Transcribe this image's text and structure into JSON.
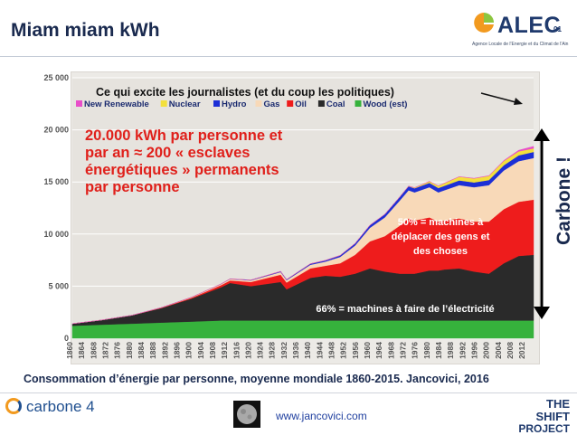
{
  "slide": {
    "title": "Miam miam kWh",
    "caption": "Consommation d’énergie par personne, moyenne mondiale 1860-2015. Jancovici, 2016",
    "url": "www.jancovici.com"
  },
  "logos": {
    "alec": "ALEC",
    "alec_number": "01",
    "alec_subtitle": "Agence Locale de l'Énergie et du Climat de l'Ain",
    "carbone4": "carbone 4",
    "shift_line1": "THE SHIFT",
    "shift_line2": "PROJECT"
  },
  "colors": {
    "title": "#1a2a4f",
    "red_annotation": "#e0201b",
    "new_renewable": "#e84ec9",
    "nuclear": "#f3e03c",
    "hydro": "#1d2fd6",
    "gas": "#f8d9b8",
    "oil": "#ee1c1c",
    "coal": "#2a2a2a",
    "wood": "#36b23c"
  },
  "annotations": {
    "journalists": "Ce qui excite les journalistes (et du coup les politiques)",
    "per_person_lines": [
      "20.000 kWh par personne et",
      "par an ≈ 200 « esclaves",
      "énergétiques » permanents",
      "par personne"
    ],
    "machines_move_lines": [
      "50% = machines à",
      "déplacer des gens et",
      "des choses"
    ],
    "machines_electricity": "66% = machines à faire de l’électricité",
    "carbone": "Carbone !"
  },
  "chart_data": {
    "type": "area",
    "stacked": true,
    "title": "",
    "xlabel": "",
    "ylabel": "",
    "units": "kWh per person per year",
    "ylim": [
      0,
      25000
    ],
    "y_ticks": [
      0,
      5000,
      10000,
      15000,
      20000,
      25000
    ],
    "y_tick_labels": [
      "0",
      "5 000",
      "10 000",
      "15 000",
      "20 000",
      "25 000"
    ],
    "x_tick_labels": [
      "1860",
      "1864",
      "1868",
      "1872",
      "1876",
      "1880",
      "1884",
      "1888",
      "1892",
      "1896",
      "1900",
      "1904",
      "1908",
      "1912",
      "1916",
      "1920",
      "1924",
      "1928",
      "1932",
      "1936",
      "1940",
      "1944",
      "1948",
      "1952",
      "1956",
      "1960",
      "1964",
      "1968",
      "1972",
      "1976",
      "1980",
      "1984",
      "1988",
      "1992",
      "1996",
      "2000",
      "2004",
      "2008",
      "2012"
    ],
    "legend_position": "top-left",
    "x": [
      1860,
      1870,
      1880,
      1890,
      1900,
      1910,
      1913,
      1920,
      1930,
      1932,
      1940,
      1945,
      1950,
      1955,
      1960,
      1965,
      1970,
      1973,
      1975,
      1980,
      1983,
      1985,
      1990,
      1995,
      2000,
      2005,
      2010,
      2015
    ],
    "series": [
      {
        "name": "Wood (est)",
        "color": "#36b23c",
        "values": [
          1200,
          1300,
          1400,
          1500,
          1600,
          1700,
          1700,
          1700,
          1700,
          1700,
          1700,
          1700,
          1700,
          1700,
          1700,
          1700,
          1700,
          1700,
          1700,
          1700,
          1700,
          1700,
          1700,
          1700,
          1700,
          1700,
          1700,
          1700
        ]
      },
      {
        "name": "Coal",
        "color": "#2a2a2a",
        "values": [
          200,
          450,
          800,
          1400,
          2200,
          3200,
          3600,
          3300,
          3700,
          3000,
          4100,
          4300,
          4200,
          4500,
          5000,
          4700,
          4500,
          4500,
          4500,
          4800,
          4800,
          4900,
          5000,
          4700,
          4500,
          5500,
          6200,
          6300
        ]
      },
      {
        "name": "Oil",
        "color": "#ee1c1c",
        "values": [
          0,
          0,
          5,
          30,
          80,
          200,
          250,
          400,
          700,
          650,
          900,
          950,
          1300,
          1800,
          2600,
          3400,
          4600,
          5300,
          5100,
          5100,
          4700,
          4700,
          4800,
          4800,
          5000,
          5200,
          5200,
          5300
        ]
      },
      {
        "name": "Gas",
        "color": "#f8d9b8",
        "values": [
          0,
          0,
          0,
          20,
          50,
          100,
          130,
          150,
          250,
          220,
          350,
          400,
          600,
          900,
          1300,
          1800,
          2400,
          2700,
          2700,
          2900,
          2800,
          2900,
          3200,
          3300,
          3500,
          3700,
          3900,
          4000
        ]
      },
      {
        "name": "Hydro",
        "color": "#1d2fd6",
        "values": [
          0,
          0,
          0,
          0,
          5,
          20,
          25,
          40,
          70,
          70,
          100,
          120,
          150,
          200,
          250,
          300,
          350,
          380,
          390,
          410,
          420,
          430,
          450,
          460,
          480,
          510,
          550,
          580
        ]
      },
      {
        "name": "Nuclear",
        "color": "#f3e03c",
        "values": [
          0,
          0,
          0,
          0,
          0,
          0,
          0,
          0,
          0,
          0,
          0,
          0,
          0,
          0,
          0,
          0,
          10,
          30,
          60,
          150,
          200,
          250,
          350,
          380,
          400,
          400,
          380,
          340
        ]
      },
      {
        "name": "New Renewable",
        "color": "#e84ec9",
        "values": [
          0,
          0,
          0,
          0,
          0,
          0,
          0,
          0,
          0,
          0,
          0,
          0,
          0,
          0,
          0,
          0,
          0,
          0,
          0,
          0,
          5,
          5,
          10,
          15,
          30,
          60,
          120,
          200
        ]
      }
    ],
    "legend_order": [
      "New Renewable",
      "Nuclear",
      "Hydro",
      "Gas",
      "Oil",
      "Coal",
      "Wood (est)"
    ]
  }
}
